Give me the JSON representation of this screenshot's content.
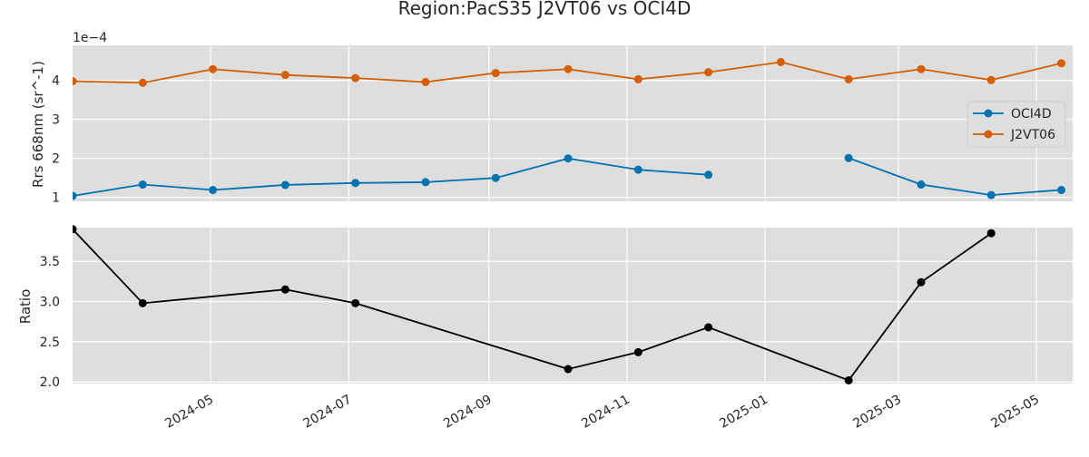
{
  "chart_data": [
    {
      "type": "line",
      "title": "Region:PacS35 J2VT06 vs OCI4D",
      "ylabel": "Rrs 668nm (sr^-1)",
      "y_offset_label": "1e−4",
      "ylim": [
        0.9,
        4.9
      ],
      "yticks": [
        1,
        2,
        3,
        4
      ],
      "grid": true,
      "legend_position": "center-right",
      "series": [
        {
          "name": "OCI4D",
          "color": "#0072b2",
          "points": [
            {
              "x": "2024-03-01",
              "y": 1.04
            },
            {
              "x": "2024-04-01",
              "y": 1.33
            },
            {
              "x": "2024-05-02",
              "y": 1.19
            },
            {
              "x": "2024-06-03",
              "y": 1.32
            },
            {
              "x": "2024-07-04",
              "y": 1.37
            },
            {
              "x": "2024-08-04",
              "y": 1.39
            },
            {
              "x": "2024-09-04",
              "y": 1.5
            },
            {
              "x": "2024-10-06",
              "y": 2.0
            },
            {
              "x": "2024-11-06",
              "y": 1.71
            },
            {
              "x": "2024-12-07",
              "y": 1.58
            },
            {
              "x": "2025-01-08",
              "y": null
            },
            {
              "x": "2025-02-07",
              "y": 2.01
            },
            {
              "x": "2025-03-11",
              "y": 1.33
            },
            {
              "x": "2025-04-11",
              "y": 1.06
            },
            {
              "x": "2025-05-12",
              "y": 1.19
            }
          ]
        },
        {
          "name": "J2VT06",
          "color": "#d55e00",
          "points": [
            {
              "x": "2024-03-01",
              "y": 3.98
            },
            {
              "x": "2024-04-01",
              "y": 3.94
            },
            {
              "x": "2024-05-02",
              "y": 4.29
            },
            {
              "x": "2024-06-03",
              "y": 4.14
            },
            {
              "x": "2024-07-04",
              "y": 4.06
            },
            {
              "x": "2024-08-04",
              "y": 3.96
            },
            {
              "x": "2024-09-04",
              "y": 4.19
            },
            {
              "x": "2024-10-06",
              "y": 4.29
            },
            {
              "x": "2024-11-06",
              "y": 4.03
            },
            {
              "x": "2024-12-07",
              "y": 4.21
            },
            {
              "x": "2025-01-08",
              "y": 4.47
            },
            {
              "x": "2025-02-07",
              "y": 4.03
            },
            {
              "x": "2025-03-11",
              "y": 4.29
            },
            {
              "x": "2025-04-11",
              "y": 4.01
            },
            {
              "x": "2025-05-12",
              "y": 4.44
            }
          ]
        }
      ]
    },
    {
      "type": "line",
      "ylabel": "Ratio",
      "xlabel": "",
      "ylim": [
        1.98,
        3.92
      ],
      "yticks": [
        2.0,
        2.5,
        3.0,
        3.5
      ],
      "grid": true,
      "series": [
        {
          "name": "",
          "color": "#000000",
          "points": [
            {
              "x": "2024-03-01",
              "y": 3.9
            },
            {
              "x": "2024-04-01",
              "y": 2.98
            },
            {
              "x": "2024-06-03",
              "y": 3.15
            },
            {
              "x": "2024-07-04",
              "y": 2.98
            },
            {
              "x": "2024-10-06",
              "y": 2.16
            },
            {
              "x": "2024-11-06",
              "y": 2.37
            },
            {
              "x": "2024-12-07",
              "y": 2.68
            },
            {
              "x": "2025-02-07",
              "y": 2.02
            },
            {
              "x": "2025-03-11",
              "y": 3.24
            },
            {
              "x": "2025-04-11",
              "y": 3.85
            }
          ]
        }
      ]
    }
  ],
  "x_axis": {
    "type": "date",
    "range": [
      "2024-03-01",
      "2025-05-17"
    ],
    "ticks": [
      "2024-05",
      "2024-07",
      "2024-09",
      "2024-11",
      "2025-01",
      "2025-03",
      "2025-05"
    ],
    "tick_dates": [
      "2024-05-01",
      "2024-07-01",
      "2024-09-01",
      "2024-11-01",
      "2025-01-01",
      "2025-03-01",
      "2025-05-01"
    ]
  },
  "colors": {
    "plot_background": "#dedede",
    "grid": "#ffffff",
    "text": "#262626"
  }
}
